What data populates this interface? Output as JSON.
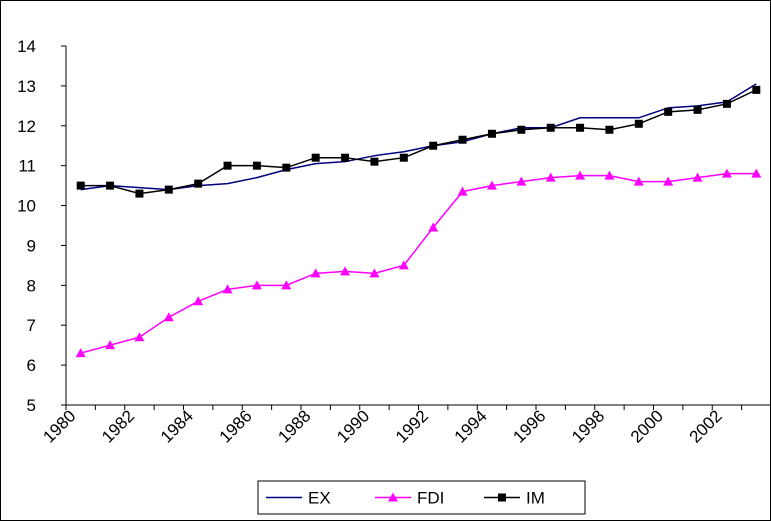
{
  "chart_data": {
    "type": "line",
    "categories": [
      "1980",
      null,
      "1982",
      null,
      "1984",
      null,
      "1986",
      null,
      "1988",
      null,
      "1990",
      null,
      "1992",
      null,
      "1994",
      null,
      "1996",
      null,
      "1998",
      null,
      "2000",
      null,
      "2002",
      null
    ],
    "series": [
      {
        "name": "EX",
        "color": "#000080",
        "marker": "none",
        "values": [
          10.4,
          10.5,
          10.45,
          10.4,
          10.5,
          10.55,
          10.7,
          10.9,
          11.05,
          11.1,
          11.25,
          11.35,
          11.5,
          11.6,
          11.8,
          11.95,
          11.95,
          12.2,
          12.2,
          12.2,
          12.45,
          12.5,
          12.6,
          13.05
        ]
      },
      {
        "name": "FDI",
        "color": "#ff00ff",
        "marker": "triangle",
        "values": [
          6.3,
          6.5,
          6.7,
          7.2,
          7.6,
          7.9,
          8.0,
          8.0,
          8.3,
          8.35,
          8.3,
          8.5,
          9.45,
          10.35,
          10.5,
          10.6,
          10.7,
          10.75,
          10.75,
          10.6,
          10.6,
          10.7,
          10.8,
          10.8
        ]
      },
      {
        "name": "IM",
        "color": "#000000",
        "marker": "square",
        "values": [
          10.5,
          10.5,
          10.3,
          10.4,
          10.55,
          11.0,
          11.0,
          10.95,
          11.2,
          11.2,
          11.1,
          11.2,
          11.5,
          11.65,
          11.8,
          11.9,
          11.95,
          11.95,
          11.9,
          12.05,
          12.35,
          12.4,
          12.55,
          12.9
        ]
      }
    ],
    "ylim": [
      5,
      14
    ],
    "yticks": [
      5,
      6,
      7,
      8,
      9,
      10,
      11,
      12,
      13,
      14
    ],
    "legend": "bottom"
  }
}
